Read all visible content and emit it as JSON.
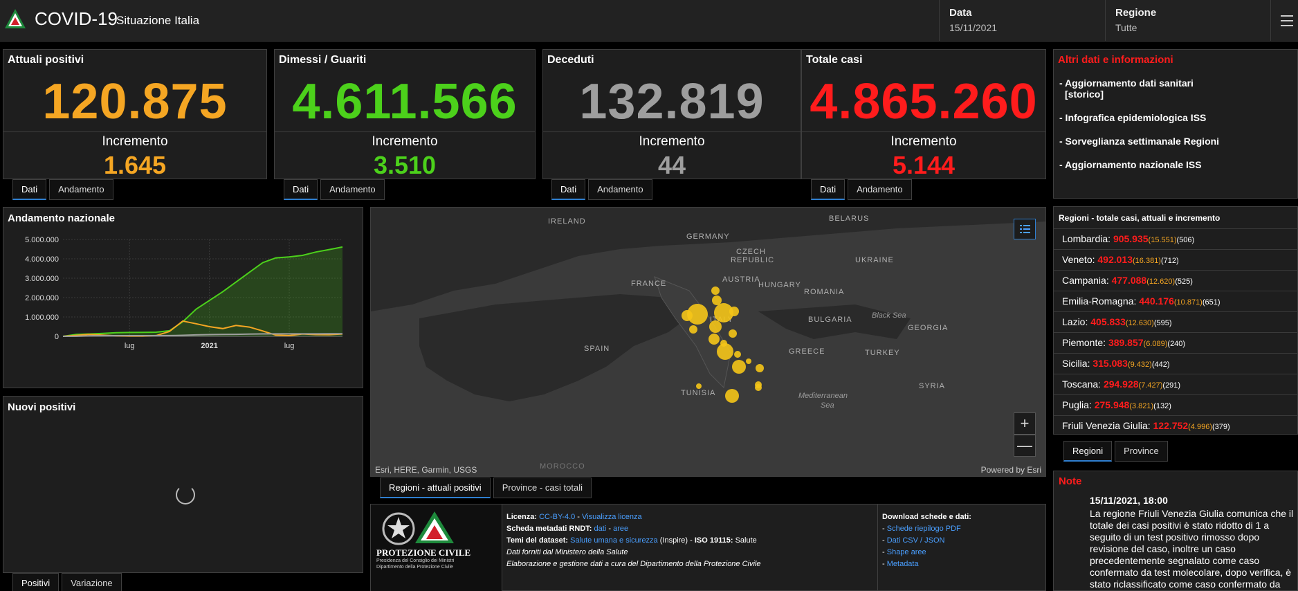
{
  "header": {
    "title": "COVID-19",
    "subtitle": "Situazione Italia",
    "date_label": "Data",
    "date_value": "15/11/2021",
    "region_label": "Regione",
    "region_value": "Tutte"
  },
  "cards": [
    {
      "title": "Attuali positivi",
      "value": "120.875",
      "inc_label": "Incremento",
      "inc_value": "1.645",
      "color": "#f5a623"
    },
    {
      "title": "Dimessi / Guariti",
      "value": "4.611.566",
      "inc_label": "Incremento",
      "inc_value": "3.510",
      "color": "#4cd11b"
    },
    {
      "title": "Deceduti",
      "value": "132.819",
      "inc_label": "Incremento",
      "inc_value": "44",
      "color": "#9e9e9e"
    },
    {
      "title": "Totale casi",
      "value": "4.865.260",
      "inc_label": "Incremento",
      "inc_value": "5.144",
      "color": "#ff1c1c"
    }
  ],
  "card_tabs": {
    "dati": "Dati",
    "andamento": "Andamento"
  },
  "info": {
    "title": "Altri dati e informazioni",
    "items": [
      "- Aggiornamento dati sanitari",
      "[storico]",
      "- Infografica epidemiologica ISS",
      "- Sorveglianza settimanale Regioni",
      "- Aggiornamento nazionale ISS"
    ]
  },
  "regions": {
    "title": "Regioni - totale casi, attuali e incremento",
    "rows": [
      {
        "name": "Lombardia:",
        "total": "905.935",
        "inc": "(15.551)",
        "act": "(506)"
      },
      {
        "name": "Veneto:",
        "total": "492.013",
        "inc": "(16.381)",
        "act": "(712)"
      },
      {
        "name": "Campania:",
        "total": "477.088",
        "inc": "(12.620)",
        "act": "(525)"
      },
      {
        "name": "Emilia-Romagna:",
        "total": "440.176",
        "inc": "(10.871)",
        "act": "(651)"
      },
      {
        "name": "Lazio:",
        "total": "405.833",
        "inc": "(12.630)",
        "act": "(595)"
      },
      {
        "name": "Piemonte:",
        "total": "389.857",
        "inc": "(6.089)",
        "act": "(240)"
      },
      {
        "name": "Sicilia:",
        "total": "315.083",
        "inc": "(9.432)",
        "act": "(442)"
      },
      {
        "name": "Toscana:",
        "total": "294.928",
        "inc": "(7.427)",
        "act": "(291)"
      },
      {
        "name": "Puglia:",
        "total": "275.948",
        "inc": "(3.821)",
        "act": "(132)"
      },
      {
        "name": "Friuli Venezia Giulia:",
        "total": "122.752",
        "inc": "(4.996)",
        "act": "(379)"
      }
    ],
    "tabs": [
      "Regioni",
      "Province"
    ]
  },
  "note": {
    "title": "Note",
    "date": "15/11/2021, 18:00",
    "text": "La regione Friuli Venezia Giulia comunica che il totale dei casi positivi è stato ridotto di 1 a seguito di un test positivo rimosso dopo revisione del caso, inoltre un caso precedentemente segnalato come caso confermato da test molecolare, dopo verifica, è stato riclassificato come caso confermato da"
  },
  "andamento": {
    "title": "Andamento nazionale"
  },
  "nuovi": {
    "title": "Nuovi positivi",
    "tabs": [
      "Positivi",
      "Variazione"
    ]
  },
  "chart_data": {
    "type": "line",
    "title": "Andamento nazionale",
    "yticks": [
      "5.000.000",
      "4.000.000",
      "3.000.000",
      "2.000.000",
      "1.000.000",
      "0"
    ],
    "xticks": [
      "lug",
      "2021",
      "lug"
    ],
    "ylim": [
      0,
      5000000
    ],
    "x": [
      "2020-02",
      "2020-03",
      "2020-04",
      "2020-05",
      "2020-06",
      "2020-07",
      "2020-08",
      "2020-09",
      "2020-10",
      "2020-11",
      "2020-12",
      "2021-01",
      "2021-02",
      "2021-03",
      "2021-04",
      "2021-05",
      "2021-06",
      "2021-07",
      "2021-08",
      "2021-09",
      "2021-10",
      "2021-11"
    ],
    "series": [
      {
        "color": "#4cd11b",
        "fill": true,
        "values": [
          0,
          100000,
          120000,
          150000,
          190000,
          200000,
          205000,
          215000,
          290000,
          750000,
          1400000,
          1850000,
          2300000,
          2800000,
          3300000,
          3800000,
          4050000,
          4100000,
          4180000,
          4350000,
          4480000,
          4610000
        ]
      },
      {
        "color": "#f5a623",
        "fill": false,
        "values": [
          0,
          50000,
          100000,
          60000,
          30000,
          15000,
          15000,
          40000,
          250000,
          790000,
          650000,
          500000,
          400000,
          560000,
          480000,
          280000,
          60000,
          40000,
          120000,
          90000,
          85000,
          120000
        ]
      },
      {
        "color": "#9e9e9e",
        "fill": false,
        "values": [
          0,
          5000,
          25000,
          32000,
          34000,
          35000,
          35000,
          36000,
          38000,
          55000,
          75000,
          88000,
          97000,
          105000,
          118000,
          125000,
          127000,
          128000,
          128000,
          130000,
          131000,
          132000
        ]
      }
    ]
  },
  "map": {
    "labels": [
      "IRELAND",
      "BELARUS",
      "GERMANY",
      "CZECH",
      "REPUBLIC",
      "UKRAINE",
      "FRANCE",
      "AUSTRIA",
      "HUNGARY",
      "ROMANIA",
      "ITALY",
      "BULGARIA",
      "GEORGIA",
      "SPAIN",
      "GREECE",
      "TURKEY",
      "TUNISIA",
      "SYRIA",
      "MOROCCO"
    ],
    "seas": [
      "Black Sea",
      "Mediterranean",
      "Sea"
    ],
    "attribution_left": "Esri, HERE, Garmin, USGS",
    "attribution_right": "Powered by Esri",
    "zoom_in": "+",
    "zoom_out": "—",
    "tabs": [
      "Regioni - attuali positivi",
      "Province - casi totali"
    ]
  },
  "license": {
    "org_line1": "PROTEZIONE CIVILE",
    "org_line2": "Presidenza del Consiglio dei Ministri",
    "org_line3": "Dipartimento della Protezione Civile",
    "licenza_lbl": "Licenza:",
    "licenza_val": "CC-BY-4.0",
    "licenza_sep": " - ",
    "licenza_link": "Visualizza licenza",
    "scheda_lbl": "Scheda metadati RNDT:",
    "scheda_val1": "dati",
    "scheda_sep": " - ",
    "scheda_val2": "aree",
    "temi_lbl": "Temi del dataset:",
    "temi_val": "Salute umana e sicurezza",
    "temi_rest": " (Inspire) - ",
    "iso_lbl": "ISO 19115:",
    "iso_val": " Salute",
    "fonte": "Dati forniti dal Ministero della Salute",
    "gestione": "Elaborazione e gestione dati a cura del Dipartimento della Protezione Civile",
    "download_title": "Download schede e dati:",
    "downloads": [
      "Schede riepilogo PDF",
      "Dati CSV / JSON",
      "Shape aree",
      "Metadata"
    ]
  },
  "colors": {
    "accent": "#2f7fd0",
    "red": "#ff1c1c",
    "orange": "#f5a623",
    "green": "#4cd11b",
    "grey": "#9e9e9e",
    "link": "#4a9fff"
  }
}
